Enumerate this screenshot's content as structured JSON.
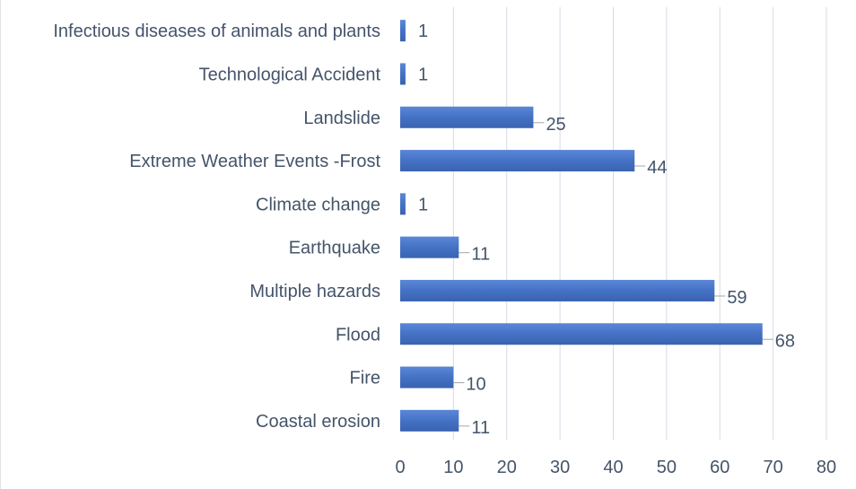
{
  "chart_data": {
    "type": "bar",
    "orientation": "horizontal",
    "categories": [
      "Coastal erosion",
      "Fire",
      "Flood",
      "Multiple hazards",
      "Earthquake",
      "Climate change",
      "Extreme Weather Events -Frost",
      "Landslide",
      "Technological Accident",
      "Infectious diseases of animals and plants"
    ],
    "values": [
      11,
      10,
      68,
      59,
      11,
      1,
      44,
      25,
      1,
      1
    ],
    "xlim": [
      0,
      80
    ],
    "xticks": [
      0,
      10,
      20,
      30,
      40,
      50,
      60,
      70,
      80
    ],
    "grid": true,
    "legend": "none",
    "bar_color": "#4472c4",
    "text_color": "#44546a",
    "grid_color": "#d9d9e6"
  }
}
